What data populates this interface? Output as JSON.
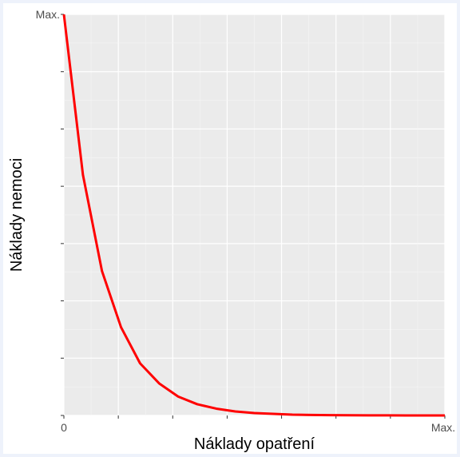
{
  "chart_data": {
    "type": "line",
    "xlabel": "Náklady opatření",
    "ylabel": "Náklady nemoci",
    "x_tick_labels": {
      "min": "0",
      "max": "Max."
    },
    "y_tick_labels": {
      "max": "Max."
    },
    "xlim": [
      0,
      1
    ],
    "ylim": [
      0,
      1
    ],
    "grid": true,
    "series": [
      {
        "color": "#ff0000",
        "x": [
          0,
          0.05,
          0.1,
          0.15,
          0.2,
          0.25,
          0.3,
          0.35,
          0.4,
          0.45,
          0.5,
          0.55,
          0.6,
          0.65,
          0.7,
          0.75,
          0.8,
          0.85,
          0.9,
          0.95,
          1.0
        ],
        "y": [
          1.0,
          0.6,
          0.36,
          0.22,
          0.13,
          0.08,
          0.047,
          0.028,
          0.017,
          0.01,
          0.006,
          0.004,
          0.002,
          0.0013,
          0.0008,
          0.0005,
          0.0003,
          0.0002,
          0.0001,
          0.0001,
          0.0
        ]
      }
    ]
  },
  "colors": {
    "panel": "#ebebeb",
    "grid_major": "#ffffff",
    "grid_minor": "#f5f5f5",
    "line": "#ff0000"
  }
}
